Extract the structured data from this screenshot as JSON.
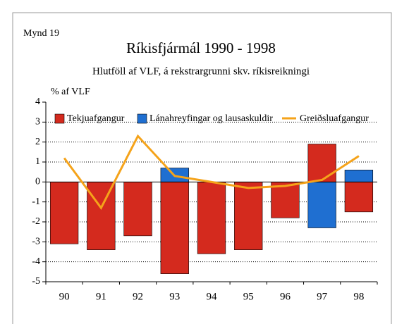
{
  "chart_data": {
    "type": "bar",
    "figure_label": "Mynd 19",
    "title": "Ríkisfjármál 1990 - 1998",
    "subtitle": "Hlutföll af VLF, á rekstrargrunni skv. ríkisreikningi",
    "y_label": "% af VLF",
    "categories": [
      "90",
      "91",
      "92",
      "93",
      "94",
      "95",
      "96",
      "97",
      "98"
    ],
    "series": [
      {
        "name": "Tekjuafgangur",
        "type": "bar",
        "color": "#d42a1e",
        "values": [
          -3.1,
          -3.4,
          -2.7,
          -4.6,
          -3.6,
          -3.4,
          -1.8,
          1.9,
          -1.5
        ]
      },
      {
        "name": "Lánahreyfingar og lausaskuldir",
        "type": "bar",
        "color": "#1f6fd1",
        "values": [
          null,
          null,
          null,
          0.7,
          null,
          null,
          null,
          -2.3,
          0.6
        ]
      },
      {
        "name": "Greiðsluafgangur",
        "type": "line",
        "color": "#f5a31a",
        "values": [
          1.2,
          -1.3,
          2.3,
          0.3,
          0.0,
          -0.3,
          -0.2,
          0.1,
          1.3
        ]
      }
    ],
    "ylim": [
      -5,
      4
    ],
    "yticks": [
      -5,
      -4,
      -3,
      -2,
      -1,
      0,
      1,
      2,
      3,
      4
    ],
    "grid": true,
    "legend": "top"
  }
}
